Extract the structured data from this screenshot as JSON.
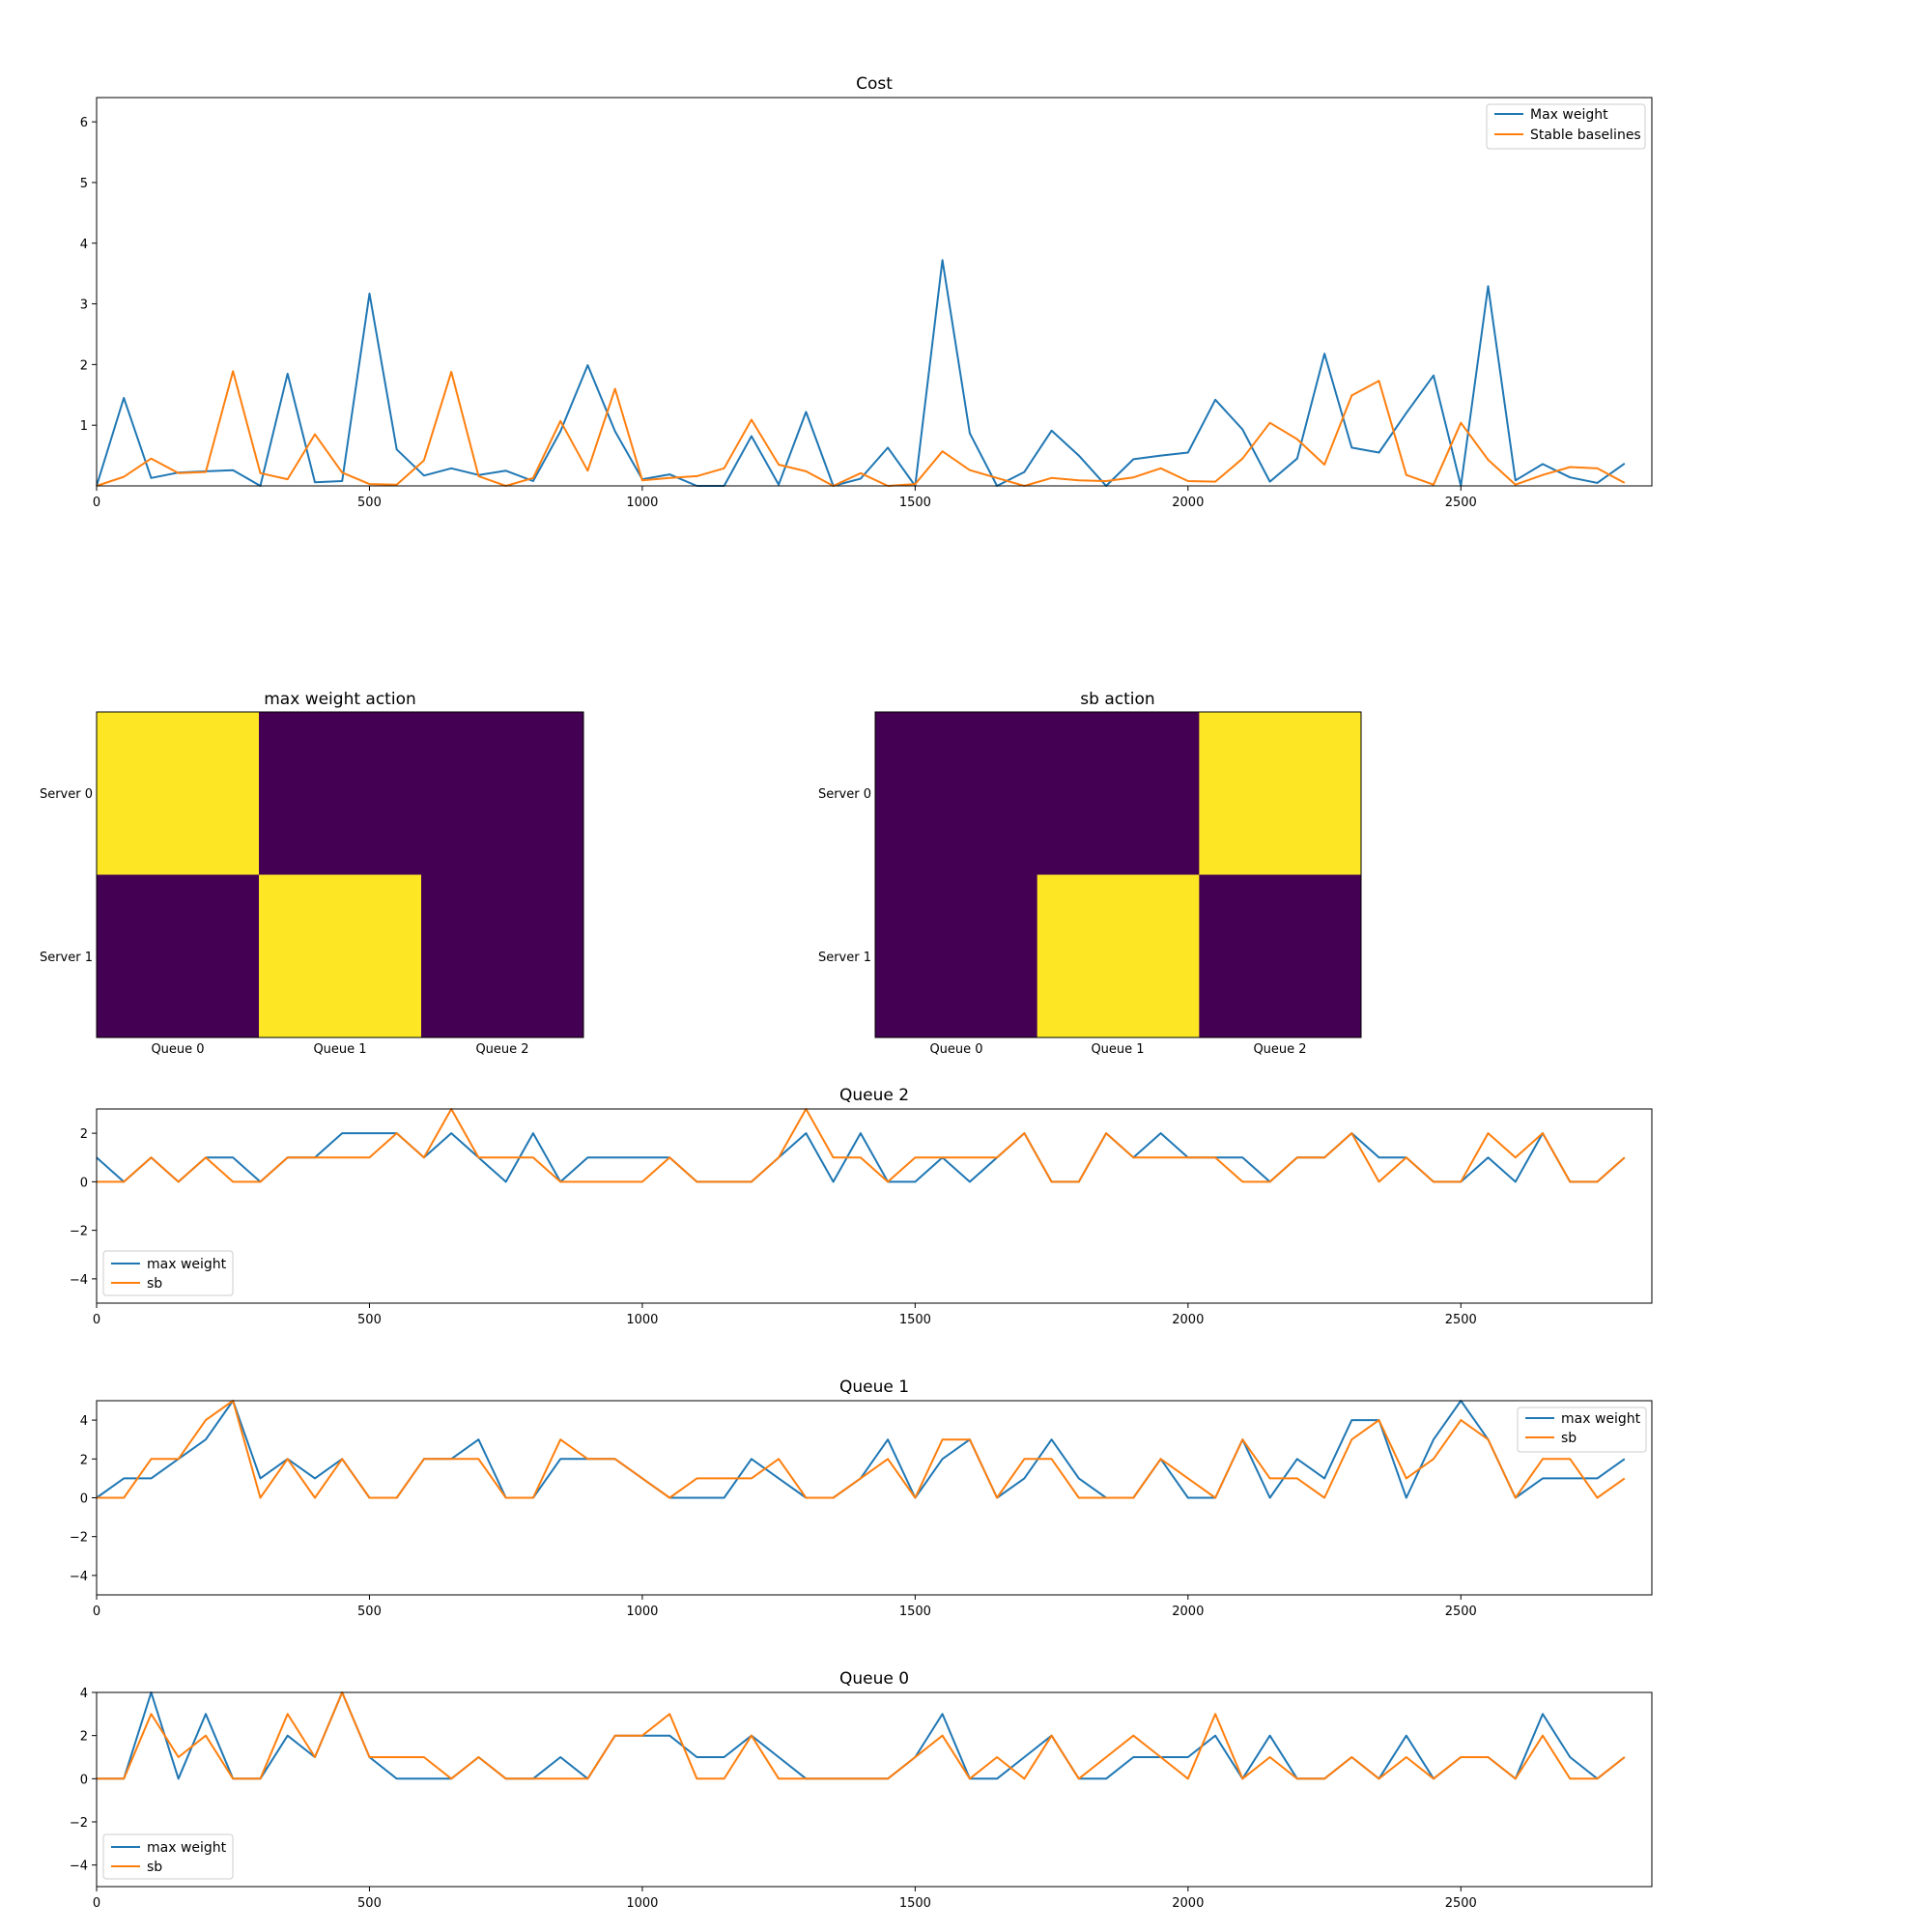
{
  "colors": {
    "blue": "#1f77b4",
    "orange": "#ff7f0e",
    "heat_low": "#440154",
    "heat_high": "#fde725"
  },
  "chart_data": [
    {
      "id": "cost",
      "type": "line",
      "title": "Cost",
      "xlim": [
        0,
        2850
      ],
      "ylim": [
        0,
        6.4
      ],
      "xticks": [
        0,
        500,
        1000,
        1500,
        2000,
        2500
      ],
      "yticks": [
        1,
        2,
        3,
        4,
        5,
        6
      ],
      "legend": "top-right",
      "x": [
        0,
        50,
        100,
        150,
        200,
        250,
        300,
        350,
        400,
        450,
        500,
        550,
        600,
        650,
        700,
        750,
        800,
        850,
        900,
        950,
        1000,
        1050,
        1100,
        1150,
        1200,
        1250,
        1300,
        1350,
        1400,
        1450,
        1500,
        1550,
        1600,
        1650,
        1700,
        1750,
        1800,
        1850,
        1900,
        1950,
        2000,
        2050,
        2100,
        2150,
        2200,
        2250,
        2300,
        2350,
        2400,
        2450,
        2500,
        2550,
        2600,
        2650,
        2700,
        2750,
        2800
      ],
      "series": [
        {
          "name": "Max weight",
          "color": "blue",
          "values": [
            0,
            1.45,
            0.13,
            0.22,
            0.24,
            0.26,
            0,
            1.85,
            0.06,
            0.08,
            3.17,
            0.6,
            0.17,
            0.29,
            0.18,
            0.25,
            0.08,
            0.9,
            1.99,
            0.9,
            0.11,
            0.19,
            0,
            0,
            0.82,
            0.02,
            1.22,
            0,
            0.12,
            0.63,
            0,
            3.72,
            0.87,
            0,
            0.23,
            0.91,
            0.5,
            0,
            0.44,
            0.5,
            0.55,
            1.42,
            0.93,
            0.07,
            0.45,
            2.18,
            0.63,
            0.55,
            1.2,
            1.82,
            0,
            3.29,
            0.09,
            0.36,
            0.14,
            0.05,
            0.37
          ]
        },
        {
          "name": "Stable baselines",
          "color": "orange",
          "values": [
            0,
            0.15,
            0.45,
            0.21,
            0.23,
            1.89,
            0.21,
            0.11,
            0.85,
            0.22,
            0.03,
            0.02,
            0.42,
            1.88,
            0.16,
            0,
            0.13,
            1.07,
            0.25,
            1.6,
            0.09,
            0.13,
            0.16,
            0.29,
            1.09,
            0.35,
            0.24,
            0,
            0.21,
            0,
            0.03,
            0.57,
            0.26,
            0.13,
            0,
            0.13,
            0.09,
            0.08,
            0.14,
            0.29,
            0.08,
            0.07,
            0.45,
            1.04,
            0.77,
            0.35,
            1.49,
            1.73,
            0.18,
            0.02,
            1.04,
            0.43,
            0.02,
            0.18,
            0.31,
            0.29,
            0.05
          ]
        }
      ]
    },
    {
      "id": "mw-action",
      "type": "heatmap",
      "title": "max weight action",
      "columns": [
        "Queue 0",
        "Queue 1",
        "Queue 2"
      ],
      "rows": [
        "Server 0",
        "Server 1"
      ],
      "values": [
        [
          1,
          0,
          0
        ],
        [
          0,
          1,
          0
        ]
      ]
    },
    {
      "id": "sb-action",
      "type": "heatmap",
      "title": "sb action",
      "columns": [
        "Queue 0",
        "Queue 1",
        "Queue 2"
      ],
      "rows": [
        "Server 0",
        "Server 1"
      ],
      "values": [
        [
          0,
          0,
          1
        ],
        [
          0,
          1,
          0
        ]
      ]
    },
    {
      "id": "queue2",
      "type": "line",
      "title": "Queue 2",
      "xlim": [
        0,
        2850
      ],
      "ylim": [
        -5,
        3
      ],
      "xticks": [
        0,
        500,
        1000,
        1500,
        2000,
        2500
      ],
      "yticks": [
        -4,
        -2,
        0,
        2
      ],
      "legend": "bottom-left",
      "x": [
        0,
        50,
        100,
        150,
        200,
        250,
        300,
        350,
        400,
        450,
        500,
        550,
        600,
        650,
        700,
        750,
        800,
        850,
        900,
        950,
        1000,
        1050,
        1100,
        1150,
        1200,
        1250,
        1300,
        1350,
        1400,
        1450,
        1500,
        1550,
        1600,
        1650,
        1700,
        1750,
        1800,
        1850,
        1900,
        1950,
        2000,
        2050,
        2100,
        2150,
        2200,
        2250,
        2300,
        2350,
        2400,
        2450,
        2500,
        2550,
        2600,
        2650,
        2700,
        2750,
        2800
      ],
      "series": [
        {
          "name": "max weight",
          "color": "blue",
          "values": [
            1,
            0,
            1,
            0,
            1,
            1,
            0,
            1,
            1,
            2,
            2,
            2,
            1,
            2,
            1,
            0,
            2,
            0,
            1,
            1,
            1,
            1,
            0,
            0,
            0,
            1,
            2,
            0,
            2,
            0,
            0,
            1,
            0,
            1,
            2,
            0,
            0,
            2,
            1,
            2,
            1,
            1,
            1,
            0,
            1,
            1,
            2,
            1,
            1,
            0,
            0,
            1,
            0,
            2,
            0,
            0,
            1
          ]
        },
        {
          "name": "sb",
          "color": "orange",
          "values": [
            0,
            0,
            1,
            0,
            1,
            0,
            0,
            1,
            1,
            1,
            1,
            2,
            1,
            3,
            1,
            1,
            1,
            0,
            0,
            0,
            0,
            1,
            0,
            0,
            0,
            1,
            3,
            1,
            1,
            0,
            1,
            1,
            1,
            1,
            2,
            0,
            0,
            2,
            1,
            1,
            1,
            1,
            0,
            0,
            1,
            1,
            2,
            0,
            1,
            0,
            0,
            2,
            1,
            2,
            0,
            0,
            1
          ]
        }
      ]
    },
    {
      "id": "queue1",
      "type": "line",
      "title": "Queue 1",
      "xlim": [
        0,
        2850
      ],
      "ylim": [
        -5,
        5
      ],
      "xticks": [
        0,
        500,
        1000,
        1500,
        2000,
        2500
      ],
      "yticks": [
        -4,
        -2,
        0,
        2,
        4
      ],
      "legend": "top-right",
      "x": [
        0,
        50,
        100,
        150,
        200,
        250,
        300,
        350,
        400,
        450,
        500,
        550,
        600,
        650,
        700,
        750,
        800,
        850,
        900,
        950,
        1000,
        1050,
        1100,
        1150,
        1200,
        1250,
        1300,
        1350,
        1400,
        1450,
        1500,
        1550,
        1600,
        1650,
        1700,
        1750,
        1800,
        1850,
        1900,
        1950,
        2000,
        2050,
        2100,
        2150,
        2200,
        2250,
        2300,
        2350,
        2400,
        2450,
        2500,
        2550,
        2600,
        2650,
        2700,
        2750,
        2800
      ],
      "series": [
        {
          "name": "max weight",
          "color": "blue",
          "values": [
            0,
            1,
            1,
            2,
            3,
            5,
            1,
            2,
            1,
            2,
            0,
            0,
            2,
            2,
            3,
            0,
            0,
            2,
            2,
            2,
            1,
            0,
            0,
            0,
            2,
            1,
            0,
            0,
            1,
            3,
            0,
            2,
            3,
            0,
            1,
            3,
            1,
            0,
            0,
            2,
            0,
            0,
            3,
            0,
            2,
            1,
            4,
            4,
            0,
            3,
            5,
            3,
            0,
            1,
            1,
            1,
            2
          ]
        },
        {
          "name": "sb",
          "color": "orange",
          "values": [
            0,
            0,
            2,
            2,
            4,
            5,
            0,
            2,
            0,
            2,
            0,
            0,
            2,
            2,
            2,
            0,
            0,
            3,
            2,
            2,
            1,
            0,
            1,
            1,
            1,
            2,
            0,
            0,
            1,
            2,
            0,
            3,
            3,
            0,
            2,
            2,
            0,
            0,
            0,
            2,
            1,
            0,
            3,
            1,
            1,
            0,
            3,
            4,
            1,
            2,
            4,
            3,
            0,
            2,
            2,
            0,
            1
          ]
        }
      ]
    },
    {
      "id": "queue0",
      "type": "line",
      "title": "Queue 0",
      "xlim": [
        0,
        2850
      ],
      "ylim": [
        -5,
        4
      ],
      "xticks": [
        0,
        500,
        1000,
        1500,
        2000,
        2500
      ],
      "yticks": [
        -4,
        -2,
        0,
        2,
        4
      ],
      "legend": "bottom-left",
      "x": [
        0,
        50,
        100,
        150,
        200,
        250,
        300,
        350,
        400,
        450,
        500,
        550,
        600,
        650,
        700,
        750,
        800,
        850,
        900,
        950,
        1000,
        1050,
        1100,
        1150,
        1200,
        1250,
        1300,
        1350,
        1400,
        1450,
        1500,
        1550,
        1600,
        1650,
        1700,
        1750,
        1800,
        1850,
        1900,
        1950,
        2000,
        2050,
        2100,
        2150,
        2200,
        2250,
        2300,
        2350,
        2400,
        2450,
        2500,
        2550,
        2600,
        2650,
        2700,
        2750,
        2800
      ],
      "series": [
        {
          "name": "max weight",
          "color": "blue",
          "values": [
            0,
            0,
            4,
            0,
            3,
            0,
            0,
            2,
            1,
            4,
            1,
            0,
            0,
            0,
            1,
            0,
            0,
            1,
            0,
            2,
            2,
            2,
            1,
            1,
            2,
            1,
            0,
            0,
            0,
            0,
            1,
            3,
            0,
            0,
            1,
            2,
            0,
            0,
            1,
            1,
            1,
            2,
            0,
            2,
            0,
            0,
            1,
            0,
            2,
            0,
            1,
            1,
            0,
            3,
            1,
            0,
            1
          ]
        },
        {
          "name": "sb",
          "color": "orange",
          "values": [
            0,
            0,
            3,
            1,
            2,
            0,
            0,
            3,
            1,
            4,
            1,
            1,
            1,
            0,
            1,
            0,
            0,
            0,
            0,
            2,
            2,
            3,
            0,
            0,
            2,
            0,
            0,
            0,
            0,
            0,
            1,
            2,
            0,
            1,
            0,
            2,
            0,
            1,
            2,
            1,
            0,
            3,
            0,
            1,
            0,
            0,
            1,
            0,
            1,
            0,
            1,
            1,
            0,
            2,
            0,
            0,
            1
          ]
        }
      ]
    }
  ]
}
